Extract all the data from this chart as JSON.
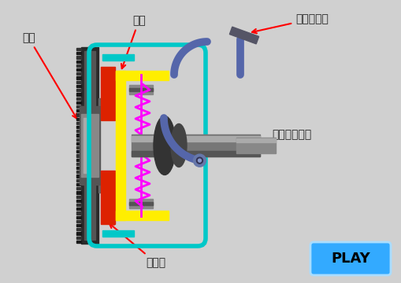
{
  "bg_color": "#d0d0d0",
  "labels": {
    "flywheel": "飛輪",
    "pressure_plate": "壓板",
    "clutch_pedal": "離合器踏板",
    "transmission_input": "變速箱輸入軸",
    "friction_disc": "摩擦盤"
  },
  "play_text": "PLAY",
  "teal": "#00c8c8",
  "yellow": "#ffee00",
  "red_pad": "#dd2200",
  "magenta": "#ff00ff",
  "dark_gray": "#444444",
  "shaft_gray": "#888888",
  "pedal_color": "#5566aa"
}
